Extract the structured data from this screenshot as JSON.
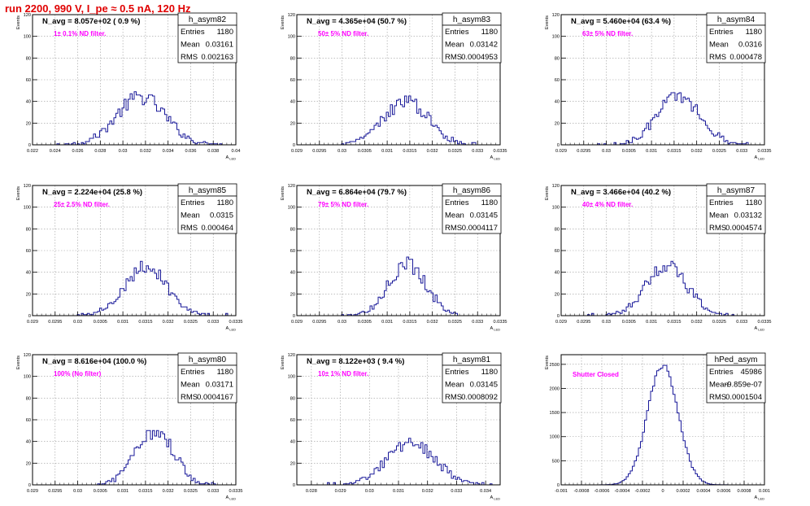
{
  "title": "run 2200,   990 V, I_pe ≈ 0.5 nA, 120 Hz",
  "colors": {
    "hist": "#1a1a9a",
    "filter_text": "#ff00ff",
    "title": "#e00000",
    "grid": "#9a9a9a"
  },
  "chart_data": [
    {
      "type": "histogram",
      "name": "h_asym82",
      "navg": "N_avg = 8.057e+02 ( 0.9 %)",
      "filter": "1± 0.1% ND filter.",
      "stats": {
        "Entries": "1180",
        "Mean": "0.03161",
        "RMS": "0.002163"
      },
      "ylabel": "Events",
      "xlabel": "A_LED",
      "xlim": [
        0.022,
        0.04
      ],
      "ylim": [
        0,
        120
      ],
      "xticks": [
        "0.022",
        "0.024",
        "0.026",
        "0.028",
        "0.03",
        "0.032",
        "0.034",
        "0.036",
        "0.038",
        "0.04"
      ],
      "yticks": [
        "0",
        "20",
        "40",
        "60",
        "80",
        "100",
        "120"
      ],
      "mean": 0.03161,
      "sigma": 0.00216,
      "peak": 44
    },
    {
      "type": "histogram",
      "name": "h_asym83",
      "navg": "N_avg = 4.365e+04 (50.7 %)",
      "filter": "50± 5% ND filter.",
      "stats": {
        "Entries": "1180",
        "Mean": "0.03142",
        "RMS": "0.0004953"
      },
      "ylabel": "Events",
      "xlabel": "A_LED",
      "xlim": [
        0.029,
        0.0335
      ],
      "ylim": [
        0,
        120
      ],
      "xticks": [
        "0.029",
        "0.0295",
        "0.03",
        "0.0305",
        "0.031",
        "0.0315",
        "0.032",
        "0.0325",
        "0.033",
        "0.0335"
      ],
      "yticks": [
        "0",
        "20",
        "40",
        "60",
        "80",
        "100",
        "120"
      ],
      "mean": 0.03142,
      "sigma": 0.000495,
      "peak": 40
    },
    {
      "type": "histogram",
      "name": "h_asym84",
      "navg": "N_avg = 5.460e+04 (63.4 %)",
      "filter": "63± 5% ND filter.",
      "stats": {
        "Entries": "1180",
        "Mean": "0.0316",
        "RMS": "0.000478"
      },
      "ylabel": "Events",
      "xlabel": "A_LED",
      "xlim": [
        0.029,
        0.0335
      ],
      "ylim": [
        0,
        120
      ],
      "xticks": [
        "0.029",
        "0.0295",
        "0.03",
        "0.0305",
        "0.031",
        "0.0315",
        "0.032",
        "0.0325",
        "0.033",
        "0.0335"
      ],
      "yticks": [
        "0",
        "20",
        "40",
        "60",
        "80",
        "100",
        "120"
      ],
      "mean": 0.0316,
      "sigma": 0.000478,
      "peak": 45
    },
    {
      "type": "histogram",
      "name": "h_asym85",
      "navg": "N_avg = 2.224e+04 (25.8 %)",
      "filter": "25± 2.5% ND filter.",
      "stats": {
        "Entries": "1180",
        "Mean": "0.0315",
        "RMS": "0.000464"
      },
      "ylabel": "Events",
      "xlabel": "A_LED",
      "xlim": [
        0.029,
        0.0335
      ],
      "ylim": [
        0,
        120
      ],
      "xticks": [
        "0.029",
        "0.0295",
        "0.03",
        "0.0305",
        "0.031",
        "0.0315",
        "0.032",
        "0.0325",
        "0.033",
        "0.0335"
      ],
      "yticks": [
        "0",
        "20",
        "40",
        "60",
        "80",
        "100",
        "120"
      ],
      "mean": 0.0315,
      "sigma": 0.000464,
      "peak": 46
    },
    {
      "type": "histogram",
      "name": "h_asym86",
      "navg": "N_avg = 6.864e+04 (79.7 %)",
      "filter": "79± 5% ND filter.",
      "stats": {
        "Entries": "1180",
        "Mean": "0.03145",
        "RMS": "0.0004117"
      },
      "ylabel": "Events",
      "xlabel": "A_LED",
      "xlim": [
        0.029,
        0.0335
      ],
      "ylim": [
        0,
        120
      ],
      "xticks": [
        "0.029",
        "0.0295",
        "0.03",
        "0.0305",
        "0.031",
        "0.0315",
        "0.032",
        "0.0325",
        "0.033",
        "0.0335"
      ],
      "yticks": [
        "0",
        "20",
        "40",
        "60",
        "80",
        "100",
        "120"
      ],
      "mean": 0.03145,
      "sigma": 0.000412,
      "peak": 48
    },
    {
      "type": "histogram",
      "name": "h_asym87",
      "navg": "N_avg = 3.466e+04 (40.2 %)",
      "filter": "40± 4% ND filter.",
      "stats": {
        "Entries": "1180",
        "Mean": "0.03132",
        "RMS": "0.0004574"
      },
      "ylabel": "Events",
      "xlabel": "A_LED",
      "xlim": [
        0.029,
        0.0335
      ],
      "ylim": [
        0,
        120
      ],
      "xticks": [
        "0.029",
        "0.0295",
        "0.03",
        "0.0305",
        "0.031",
        "0.0315",
        "0.032",
        "0.0325",
        "0.033",
        "0.0335"
      ],
      "yticks": [
        "0",
        "20",
        "40",
        "60",
        "80",
        "100",
        "120"
      ],
      "mean": 0.03132,
      "sigma": 0.000457,
      "peak": 46
    },
    {
      "type": "histogram",
      "name": "h_asym80",
      "navg": "N_avg = 8.616e+04 (100.0 %)",
      "filter": "100% (No filter)",
      "stats": {
        "Entries": "1180",
        "Mean": "0.03171",
        "RMS": "0.0004167"
      },
      "ylabel": "Events",
      "xlabel": "A_LED",
      "xlim": [
        0.029,
        0.0335
      ],
      "ylim": [
        0,
        120
      ],
      "xticks": [
        "0.029",
        "0.0295",
        "0.03",
        "0.0305",
        "0.031",
        "0.0315",
        "0.032",
        "0.0325",
        "0.033",
        "0.0335"
      ],
      "yticks": [
        "0",
        "20",
        "40",
        "60",
        "80",
        "100",
        "120"
      ],
      "mean": 0.03171,
      "sigma": 0.000417,
      "peak": 50
    },
    {
      "type": "histogram",
      "name": "h_asym81",
      "navg": "N_avg = 8.122e+03 ( 9.4 %)",
      "filter": "10± 1% ND filter.",
      "stats": {
        "Entries": "1180",
        "Mean": "0.03145",
        "RMS": "0.0008092"
      },
      "ylabel": "Events",
      "xlabel": "A_LED",
      "xlim": [
        0.0275,
        0.0345
      ],
      "ylim": [
        0,
        120
      ],
      "xticks": [
        "0.028",
        "0.029",
        "0.03",
        "0.031",
        "0.032",
        "0.033",
        "0.034"
      ],
      "xtick_values": [
        0.028,
        0.029,
        0.03,
        0.031,
        0.032,
        0.033,
        0.034
      ],
      "yticks": [
        "0",
        "20",
        "40",
        "60",
        "80",
        "100",
        "120"
      ],
      "mean": 0.03145,
      "sigma": 0.00081,
      "peak": 40
    },
    {
      "type": "histogram",
      "name": "hPed_asym",
      "navg": "",
      "filter": "Shutter Closed",
      "stats": {
        "Entries": "45986",
        "Mean": "-9.859e-07",
        "RMS": "0.0001504"
      },
      "ylabel": "Events",
      "xlabel": "A_LED",
      "xlim": [
        -0.001,
        0.001
      ],
      "ylim": [
        0,
        2700
      ],
      "xticks": [
        "-0.001",
        "-0.0008",
        "-0.0006",
        "-0.0004",
        "-0.0002",
        "0",
        "0.0002",
        "0.0004",
        "0.0006",
        "0.0008",
        "0.001"
      ],
      "yticks": [
        "0",
        "500",
        "1000",
        "1500",
        "2000",
        "2500"
      ],
      "ytick_values": [
        0,
        500,
        1000,
        1500,
        2000,
        2500
      ],
      "mean": 0.0,
      "sigma": 0.00015,
      "peak": 2480
    }
  ]
}
